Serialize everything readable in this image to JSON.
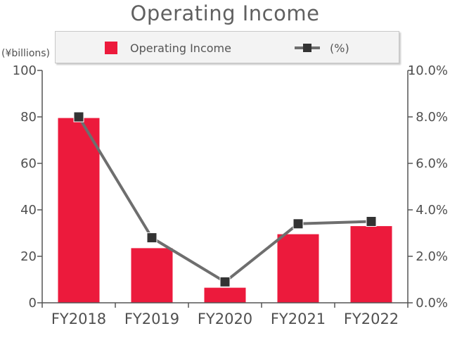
{
  "page": {
    "title": "Operating Income",
    "unit_label": "(¥billions)"
  },
  "legend": {
    "bar_label": "Operating Income",
    "line_label": "(%)"
  },
  "colors": {
    "bar": "#ec1a3c",
    "line": "#6e6e6e",
    "marker": "#333333",
    "axis": "#555555",
    "legend_bg": "#f3f3f3"
  },
  "chart_data": {
    "type": "bar",
    "title": "Operating Income",
    "categories": [
      "FY2018",
      "FY2019",
      "FY2020",
      "FY2021",
      "FY2022"
    ],
    "series": [
      {
        "name": "Operating Income",
        "type": "bar",
        "axis": "left",
        "values": [
          79.5,
          23.5,
          6.5,
          29.5,
          33.0
        ]
      },
      {
        "name": "(%)",
        "type": "line",
        "axis": "right",
        "values": [
          8.0,
          2.8,
          0.9,
          3.4,
          3.5
        ]
      }
    ],
    "y_left": {
      "label": "(¥billions)",
      "min": 0,
      "max": 100,
      "ticks": [
        "0",
        "20",
        "40",
        "60",
        "80",
        "100"
      ]
    },
    "y_right": {
      "min": 0,
      "max": 10,
      "ticks": [
        "0.0%",
        "2.0%",
        "4.0%",
        "6.0%",
        "8.0%",
        "10.0%"
      ]
    },
    "grid": false,
    "legend_position": "top"
  }
}
